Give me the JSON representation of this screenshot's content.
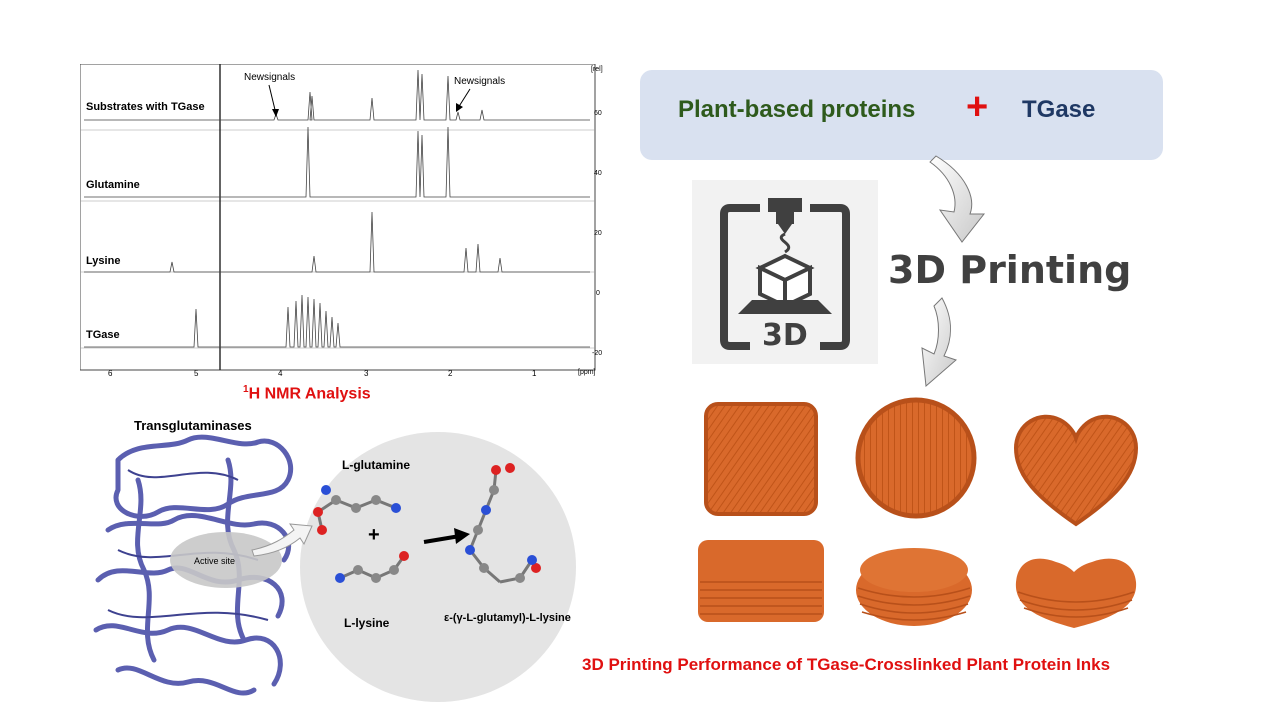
{
  "nmr": {
    "traces": [
      "Substrates with TGase",
      "Glutamine",
      "Lysine",
      "TGase"
    ],
    "annotations": [
      "Newsignals",
      "Newsignals"
    ],
    "x_ticks": [
      "6",
      "5",
      "4",
      "3",
      "2",
      "1",
      "[ppm]"
    ],
    "y_ticks": [
      "[rel]",
      "60",
      "40",
      "20",
      "0",
      "-20"
    ],
    "title_sup": "1",
    "title_rest": "H NMR Analysis"
  },
  "proteins": {
    "left": "Plant-based proteins",
    "plus": "+",
    "right": "TGase",
    "left_color": "#2e5a1c",
    "right_color": "#1f3864",
    "plus_color": "#e01010"
  },
  "printer": {
    "badge": "3D",
    "label": "3D Printing",
    "icon_color": "#404040"
  },
  "reaction": {
    "enzyme_label": "Transglutaminases",
    "active_site": "Active site",
    "substrate1": "L-glutamine",
    "plus": "+",
    "substrate2": "L-lysine",
    "product": "ε-(γ-L-glutamyl)-L-lysine",
    "protein_color": "#5b5fb0"
  },
  "performance_caption": "3D Printing Performance of TGase-Crosslinked Plant Protein Inks",
  "colors": {
    "accent_red": "#e01010",
    "print_orange": "#d9692b"
  }
}
